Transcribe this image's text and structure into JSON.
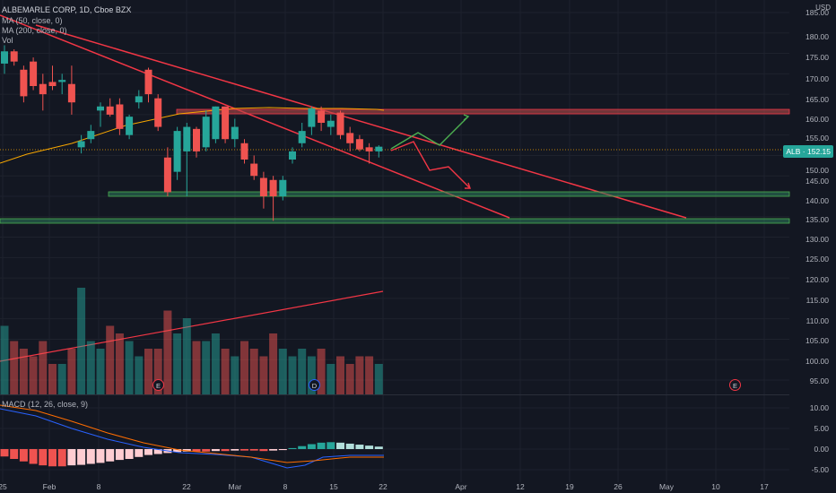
{
  "header": {
    "title": "ALBEMARLE CORP, 1D, Cboe BZX",
    "ma50": "MA (50, close, 0)",
    "ma200": "MA (200, close, 0)",
    "vol": "Vol",
    "macd": "MACD (12, 26, close, 9)",
    "currency": "USD"
  },
  "price_tag": "ALB · 152.15",
  "price_axis": [
    "185.00",
    "180.00",
    "175.00",
    "170.00",
    "165.00",
    "160.00",
    "155.00",
    "150.00",
    "145.00",
    "140.00",
    "135.00",
    "130.00",
    "125.00",
    "120.00",
    "115.00",
    "110.00",
    "105.00",
    "100.00",
    "95.00"
  ],
  "macd_axis": [
    "10.00",
    "5.00",
    "0.00",
    "-5.00"
  ],
  "time_axis": [
    "25",
    "Feb",
    "8",
    "22",
    "Mar",
    "8",
    "15",
    "22",
    "Apr",
    "12",
    "19",
    "26",
    "May",
    "10",
    "17"
  ],
  "events": [
    {
      "label": "E",
      "type": "earnings"
    },
    {
      "label": "D",
      "type": "dividend"
    },
    {
      "label": "E",
      "type": "earnings"
    }
  ],
  "colors": {
    "up": "#26a69a",
    "down": "#ef5350",
    "trendline": "#f23645",
    "ma": "#f7a600",
    "macd_line": "#2962ff",
    "signal_line": "#ff6d00",
    "projection_up": "#4caf50",
    "projection_down": "#f23645"
  },
  "chart_data": {
    "type": "candlestick",
    "title": "ALBEMARLE CORP, 1D, Cboe BZX",
    "last_price": 152.15,
    "ylim": [
      93,
      187
    ],
    "candles": [
      {
        "o": 172.5,
        "h": 177.0,
        "l": 170.0,
        "c": 175.5
      },
      {
        "o": 175.5,
        "h": 176.0,
        "l": 172.0,
        "c": 173.0
      },
      {
        "o": 171.0,
        "h": 172.0,
        "l": 163.0,
        "c": 164.5
      },
      {
        "o": 173.0,
        "h": 174.0,
        "l": 166.0,
        "c": 167.0
      },
      {
        "o": 167.5,
        "h": 170.0,
        "l": 161.0,
        "c": 165.0
      },
      {
        "o": 168.0,
        "h": 172.0,
        "l": 166.0,
        "c": 167.0
      },
      {
        "o": 168.0,
        "h": 170.0,
        "l": 165.0,
        "c": 168.5
      },
      {
        "o": 167.5,
        "h": 172.0,
        "l": 160.0,
        "c": 163.0
      },
      {
        "o": 152.0,
        "h": 155.0,
        "l": 150.5,
        "c": 153.5
      },
      {
        "o": 154.0,
        "h": 157.5,
        "l": 153.0,
        "c": 156.0
      },
      {
        "o": 161.0,
        "h": 163.0,
        "l": 157.0,
        "c": 162.0
      },
      {
        "o": 162.0,
        "h": 164.0,
        "l": 159.5,
        "c": 160.0
      },
      {
        "o": 162.5,
        "h": 164.0,
        "l": 155.0,
        "c": 156.5
      },
      {
        "o": 155.0,
        "h": 160.0,
        "l": 154.0,
        "c": 159.5
      },
      {
        "o": 163.0,
        "h": 166.0,
        "l": 161.5,
        "c": 164.5
      },
      {
        "o": 171.0,
        "h": 171.5,
        "l": 163.0,
        "c": 165.0
      },
      {
        "o": 164.0,
        "h": 165.0,
        "l": 156.0,
        "c": 157.0
      },
      {
        "o": 149.5,
        "h": 152.0,
        "l": 140.0,
        "c": 141.0
      },
      {
        "o": 146.0,
        "h": 157.0,
        "l": 144.0,
        "c": 156.0
      },
      {
        "o": 151.0,
        "h": 158.0,
        "l": 140.0,
        "c": 157.0
      },
      {
        "o": 156.5,
        "h": 157.0,
        "l": 149.5,
        "c": 151.0
      },
      {
        "o": 152.0,
        "h": 161.0,
        "l": 151.0,
        "c": 159.5
      },
      {
        "o": 154.0,
        "h": 162.0,
        "l": 153.0,
        "c": 162.0
      },
      {
        "o": 162.0,
        "h": 162.0,
        "l": 153.0,
        "c": 154.0
      },
      {
        "o": 154.0,
        "h": 159.0,
        "l": 152.0,
        "c": 157.0
      },
      {
        "o": 153.0,
        "h": 154.0,
        "l": 148.0,
        "c": 149.0
      },
      {
        "o": 148.0,
        "h": 150.0,
        "l": 144.0,
        "c": 145.0
      },
      {
        "o": 144.5,
        "h": 146.0,
        "l": 137.0,
        "c": 140.0
      },
      {
        "o": 144.0,
        "h": 145.0,
        "l": 134.0,
        "c": 140.0
      },
      {
        "o": 140.0,
        "h": 145.0,
        "l": 139.0,
        "c": 144.0
      },
      {
        "o": 149.0,
        "h": 152.0,
        "l": 148.0,
        "c": 151.0
      },
      {
        "o": 153.0,
        "h": 158.0,
        "l": 152.0,
        "c": 156.0
      },
      {
        "o": 157.0,
        "h": 162.0,
        "l": 155.0,
        "c": 161.5
      },
      {
        "o": 161.0,
        "h": 162.0,
        "l": 156.0,
        "c": 158.0
      },
      {
        "o": 157.0,
        "h": 160.0,
        "l": 155.0,
        "c": 158.5
      },
      {
        "o": 160.5,
        "h": 161.0,
        "l": 154.0,
        "c": 155.0
      },
      {
        "o": 155.5,
        "h": 157.0,
        "l": 151.0,
        "c": 153.0
      },
      {
        "o": 154.0,
        "h": 155.0,
        "l": 151.0,
        "c": 151.5
      },
      {
        "o": 152.0,
        "h": 153.0,
        "l": 148.0,
        "c": 151.0
      },
      {
        "o": 151.0,
        "h": 152.5,
        "l": 149.5,
        "c": 152.15
      }
    ],
    "volume": [
      9,
      7,
      6,
      5,
      7,
      4,
      4,
      6,
      14,
      7,
      6,
      9,
      8,
      7,
      5,
      6,
      6,
      11,
      8,
      10,
      7,
      7,
      8,
      6,
      5,
      7,
      6,
      5,
      8,
      6,
      5,
      6,
      5,
      6,
      4,
      5,
      4,
      5,
      5,
      4
    ]
  }
}
